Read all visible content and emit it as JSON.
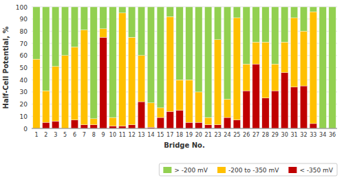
{
  "chart_data": {
    "type": "bar",
    "stacked": true,
    "categories": [
      "1",
      "2",
      "3",
      "5",
      "6",
      "7",
      "8",
      "9",
      "10",
      "11",
      "12",
      "13",
      "14",
      "15",
      "17",
      "18",
      "19",
      "20",
      "21",
      "23",
      "24",
      "25",
      "26",
      "27",
      "28",
      "29",
      "30",
      "31",
      "32",
      "33",
      "34",
      "36"
    ],
    "series": [
      {
        "name": "> -200 mV",
        "color": "#92d050",
        "values": [
          43,
          69,
          49,
          40,
          33,
          19,
          92,
          18,
          91,
          5,
          25,
          40,
          79,
          83,
          8,
          60,
          60,
          70,
          91,
          27,
          76,
          9,
          47,
          29,
          29,
          47,
          29,
          9,
          20,
          4,
          100,
          100
        ]
      },
      {
        "name": "-200 to -350 mV",
        "color": "#ffc000",
        "values": [
          57,
          26,
          45,
          60,
          60,
          78,
          5,
          7,
          7,
          93,
          72,
          38,
          20,
          8,
          78,
          25,
          35,
          25,
          6,
          70,
          15,
          84,
          22,
          18,
          46,
          22,
          25,
          57,
          45,
          92,
          0,
          0
        ]
      },
      {
        "name": "< -350 mV",
        "color": "#c00000",
        "values": [
          0,
          5,
          6,
          0,
          7,
          3,
          3,
          75,
          2,
          2,
          3,
          22,
          1,
          9,
          14,
          15,
          5,
          5,
          3,
          3,
          9,
          7,
          31,
          53,
          25,
          31,
          46,
          34,
          35,
          4,
          0,
          0
        ]
      }
    ],
    "xlabel": "Bridge No.",
    "ylabel": "Half-Cell Potential, %",
    "ylim": [
      0,
      100
    ],
    "yticks": [
      0,
      10,
      20,
      30,
      40,
      50,
      60,
      70,
      80,
      90,
      100
    ],
    "grid": true,
    "legend": "bottom-right"
  }
}
